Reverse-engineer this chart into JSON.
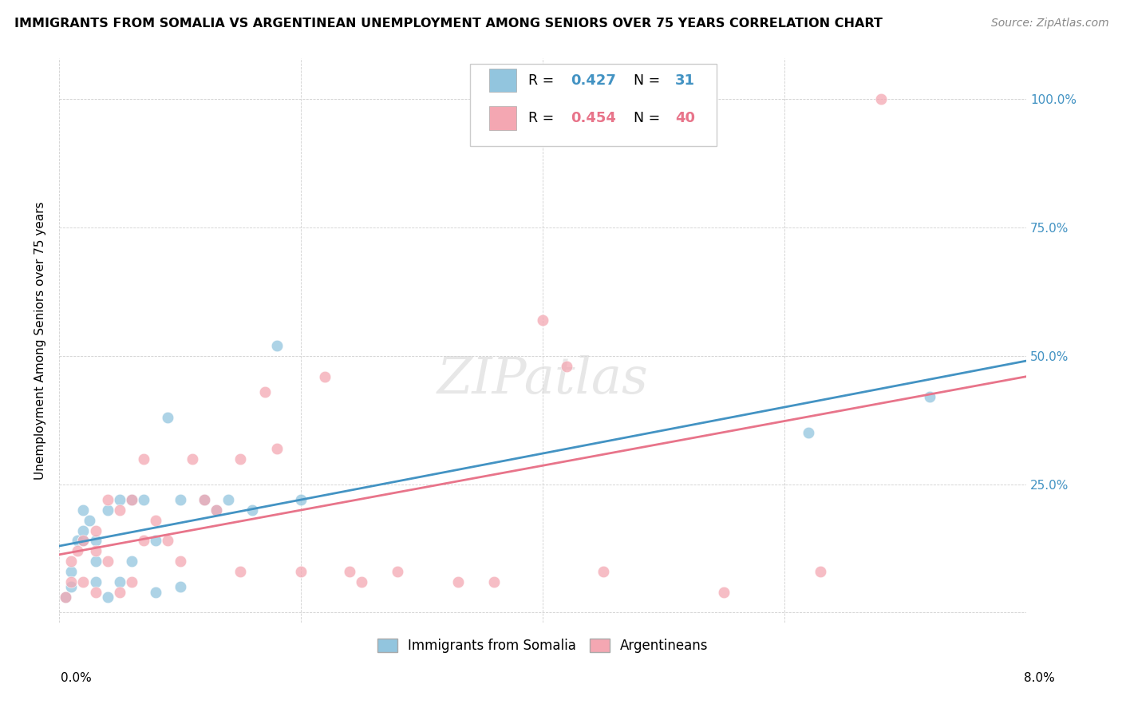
{
  "title": "IMMIGRANTS FROM SOMALIA VS ARGENTINEAN UNEMPLOYMENT AMONG SENIORS OVER 75 YEARS CORRELATION CHART",
  "source": "Source: ZipAtlas.com",
  "ylabel": "Unemployment Among Seniors over 75 years",
  "xlim": [
    0.0,
    0.08
  ],
  "ylim": [
    -0.02,
    1.08
  ],
  "yticks": [
    0.0,
    0.25,
    0.5,
    0.75,
    1.0
  ],
  "ytick_labels": [
    "",
    "25.0%",
    "50.0%",
    "75.0%",
    "100.0%"
  ],
  "color_somalia": "#92c5de",
  "color_argentina": "#f4a7b2",
  "color_somalia_line": "#4393c3",
  "color_argentina_line": "#e8748a",
  "legend_R1": "0.427",
  "legend_N1": "31",
  "legend_R2": "0.454",
  "legend_N2": "40",
  "somalia_x": [
    0.0005,
    0.001,
    0.001,
    0.0015,
    0.002,
    0.002,
    0.002,
    0.0025,
    0.003,
    0.003,
    0.003,
    0.004,
    0.004,
    0.005,
    0.005,
    0.006,
    0.006,
    0.007,
    0.008,
    0.008,
    0.009,
    0.01,
    0.01,
    0.012,
    0.013,
    0.014,
    0.016,
    0.018,
    0.02,
    0.062,
    0.072
  ],
  "somalia_y": [
    0.03,
    0.05,
    0.08,
    0.14,
    0.14,
    0.16,
    0.2,
    0.18,
    0.06,
    0.1,
    0.14,
    0.03,
    0.2,
    0.06,
    0.22,
    0.1,
    0.22,
    0.22,
    0.04,
    0.14,
    0.38,
    0.05,
    0.22,
    0.22,
    0.2,
    0.22,
    0.2,
    0.52,
    0.22,
    0.35,
    0.42
  ],
  "argentina_x": [
    0.0005,
    0.001,
    0.001,
    0.0015,
    0.002,
    0.002,
    0.003,
    0.003,
    0.003,
    0.004,
    0.004,
    0.005,
    0.005,
    0.006,
    0.006,
    0.007,
    0.007,
    0.008,
    0.009,
    0.01,
    0.011,
    0.012,
    0.013,
    0.015,
    0.015,
    0.017,
    0.018,
    0.02,
    0.022,
    0.024,
    0.025,
    0.028,
    0.033,
    0.036,
    0.04,
    0.042,
    0.045,
    0.055,
    0.063,
    0.068
  ],
  "argentina_y": [
    0.03,
    0.06,
    0.1,
    0.12,
    0.06,
    0.14,
    0.04,
    0.12,
    0.16,
    0.1,
    0.22,
    0.04,
    0.2,
    0.06,
    0.22,
    0.14,
    0.3,
    0.18,
    0.14,
    0.1,
    0.3,
    0.22,
    0.2,
    0.3,
    0.08,
    0.43,
    0.32,
    0.08,
    0.46,
    0.08,
    0.06,
    0.08,
    0.06,
    0.06,
    0.57,
    0.48,
    0.08,
    0.04,
    0.08,
    1.0
  ]
}
